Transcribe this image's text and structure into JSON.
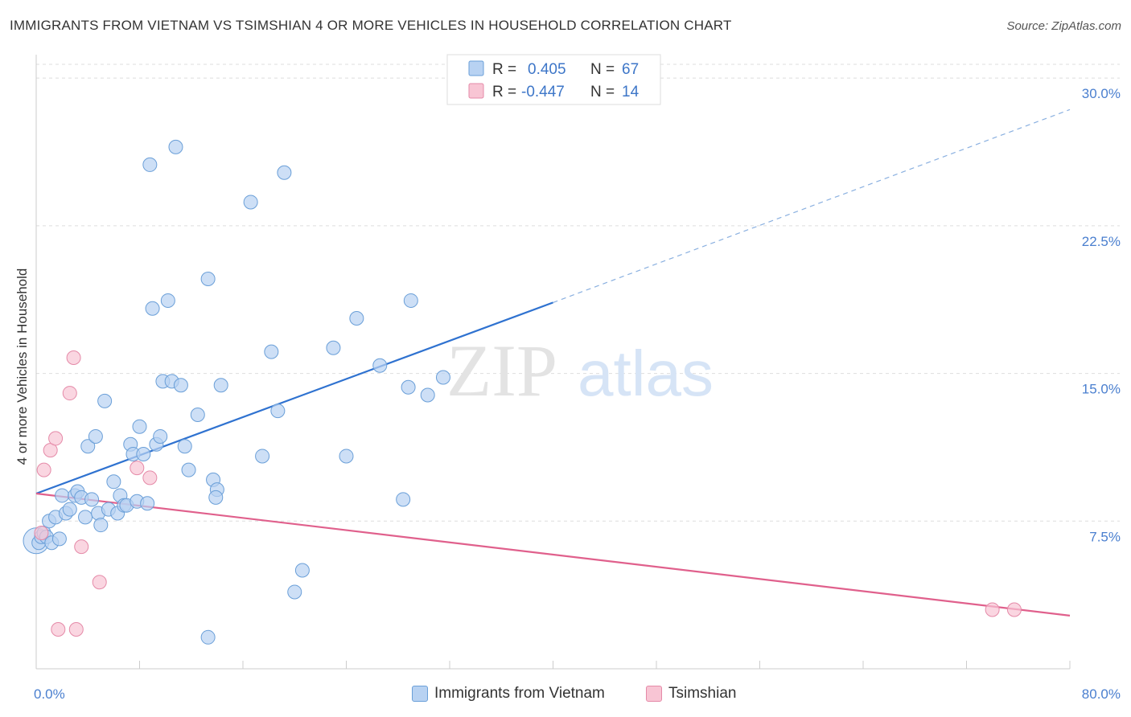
{
  "header": {
    "title": "IMMIGRANTS FROM VIETNAM VS TSIMSHIAN 4 OR MORE VEHICLES IN HOUSEHOLD CORRELATION CHART",
    "source": "Source: ZipAtlas.com"
  },
  "watermark": {
    "part1": "ZIP",
    "part2": "atlas"
  },
  "stats": [
    {
      "r_label": "R =",
      "r_value": "0.405",
      "n_label": "N =",
      "n_value": "67"
    },
    {
      "r_label": "R =",
      "r_value": "-0.447",
      "n_label": "N =",
      "n_value": "14"
    }
  ],
  "legend": {
    "series1": "Immigrants from Vietnam",
    "series2": "Tsimshian"
  },
  "colors": {
    "blue_fill": "#b8d2f2",
    "blue_stroke": "#6a9fd8",
    "blue_line": "#2f72d0",
    "pink_fill": "#f8c5d4",
    "pink_stroke": "#e58aa8",
    "pink_line": "#e0608c",
    "tick_text": "#4a7fcf",
    "grid": "#dddddd"
  },
  "chart_data": {
    "type": "scatter",
    "xlabel": "",
    "ylabel": "4 or more Vehicles in Household",
    "xlim": [
      0,
      80
    ],
    "ylim": [
      0,
      30.7
    ],
    "x_tick_labels": [
      {
        "value": 0,
        "label": "0.0%"
      },
      {
        "value": 80,
        "label": "80.0%"
      }
    ],
    "y_tick_labels": [
      {
        "value": 7.5,
        "label": "7.5%"
      },
      {
        "value": 15,
        "label": "15.0%"
      },
      {
        "value": 22.5,
        "label": "22.5%"
      },
      {
        "value": 30,
        "label": "30.0%"
      }
    ],
    "x_minor_ticks": [
      8,
      16,
      24,
      32,
      40,
      48,
      56,
      64,
      72,
      80
    ],
    "grid": true,
    "legend_position": "bottom-center",
    "series": [
      {
        "name": "Immigrants from Vietnam",
        "points": [
          [
            0.2,
            6.4
          ],
          [
            0.4,
            6.7
          ],
          [
            0.6,
            6.9
          ],
          [
            0.8,
            6.7
          ],
          [
            1.0,
            7.5
          ],
          [
            1.2,
            6.4
          ],
          [
            1.5,
            7.7
          ],
          [
            1.8,
            6.6
          ],
          [
            2.0,
            8.8
          ],
          [
            2.3,
            7.9
          ],
          [
            2.6,
            8.1
          ],
          [
            3.0,
            8.8
          ],
          [
            3.2,
            9.0
          ],
          [
            3.5,
            8.7
          ],
          [
            3.8,
            7.7
          ],
          [
            4.0,
            11.3
          ],
          [
            4.3,
            8.6
          ],
          [
            4.6,
            11.8
          ],
          [
            4.8,
            7.9
          ],
          [
            5.0,
            7.3
          ],
          [
            5.3,
            13.6
          ],
          [
            5.6,
            8.1
          ],
          [
            6.0,
            9.5
          ],
          [
            6.3,
            7.9
          ],
          [
            6.5,
            8.8
          ],
          [
            6.8,
            8.3
          ],
          [
            7.0,
            8.3
          ],
          [
            7.3,
            11.4
          ],
          [
            7.5,
            10.9
          ],
          [
            7.8,
            8.5
          ],
          [
            8.0,
            12.3
          ],
          [
            8.3,
            10.9
          ],
          [
            8.6,
            8.4
          ],
          [
            8.8,
            25.6
          ],
          [
            9.0,
            18.3
          ],
          [
            9.3,
            11.4
          ],
          [
            9.6,
            11.8
          ],
          [
            9.8,
            14.6
          ],
          [
            10.2,
            18.7
          ],
          [
            10.5,
            14.6
          ],
          [
            10.8,
            26.5
          ],
          [
            11.2,
            14.4
          ],
          [
            11.5,
            11.3
          ],
          [
            11.8,
            10.1
          ],
          [
            12.5,
            12.9
          ],
          [
            13.3,
            19.8
          ],
          [
            13.7,
            9.6
          ],
          [
            14.0,
            9.1
          ],
          [
            14.3,
            14.4
          ],
          [
            13.9,
            8.7
          ],
          [
            13.3,
            1.6
          ],
          [
            16.6,
            23.7
          ],
          [
            17.5,
            10.8
          ],
          [
            18.2,
            16.1
          ],
          [
            18.7,
            13.1
          ],
          [
            19.2,
            25.2
          ],
          [
            20.0,
            3.9
          ],
          [
            20.6,
            5.0
          ],
          [
            23.0,
            16.3
          ],
          [
            24.0,
            10.8
          ],
          [
            24.8,
            17.8
          ],
          [
            26.6,
            15.4
          ],
          [
            28.4,
            8.6
          ],
          [
            28.8,
            14.3
          ],
          [
            29.0,
            18.7
          ],
          [
            30.3,
            13.9
          ],
          [
            31.5,
            14.8
          ]
        ]
      },
      {
        "name": "Tsimshian",
        "points": [
          [
            0.4,
            6.9
          ],
          [
            0.6,
            10.1
          ],
          [
            1.1,
            11.1
          ],
          [
            1.5,
            11.7
          ],
          [
            1.7,
            2.0
          ],
          [
            2.6,
            14.0
          ],
          [
            2.9,
            15.8
          ],
          [
            3.1,
            2.0
          ],
          [
            3.5,
            6.2
          ],
          [
            4.9,
            4.4
          ],
          [
            7.8,
            10.2
          ],
          [
            8.8,
            9.7
          ],
          [
            74.0,
            3.0
          ],
          [
            75.7,
            3.0
          ]
        ]
      }
    ],
    "trend_lines": [
      {
        "series": "Immigrants from Vietnam",
        "x_start": 0,
        "y_start": 8.9,
        "x_end": 40,
        "y_end": 18.6,
        "dashed_to_x": 80,
        "dashed_to_y": 28.4
      },
      {
        "series": "Tsimshian",
        "x_start": 0,
        "y_start": 8.9,
        "x_end": 80,
        "y_end": 2.7
      }
    ]
  }
}
